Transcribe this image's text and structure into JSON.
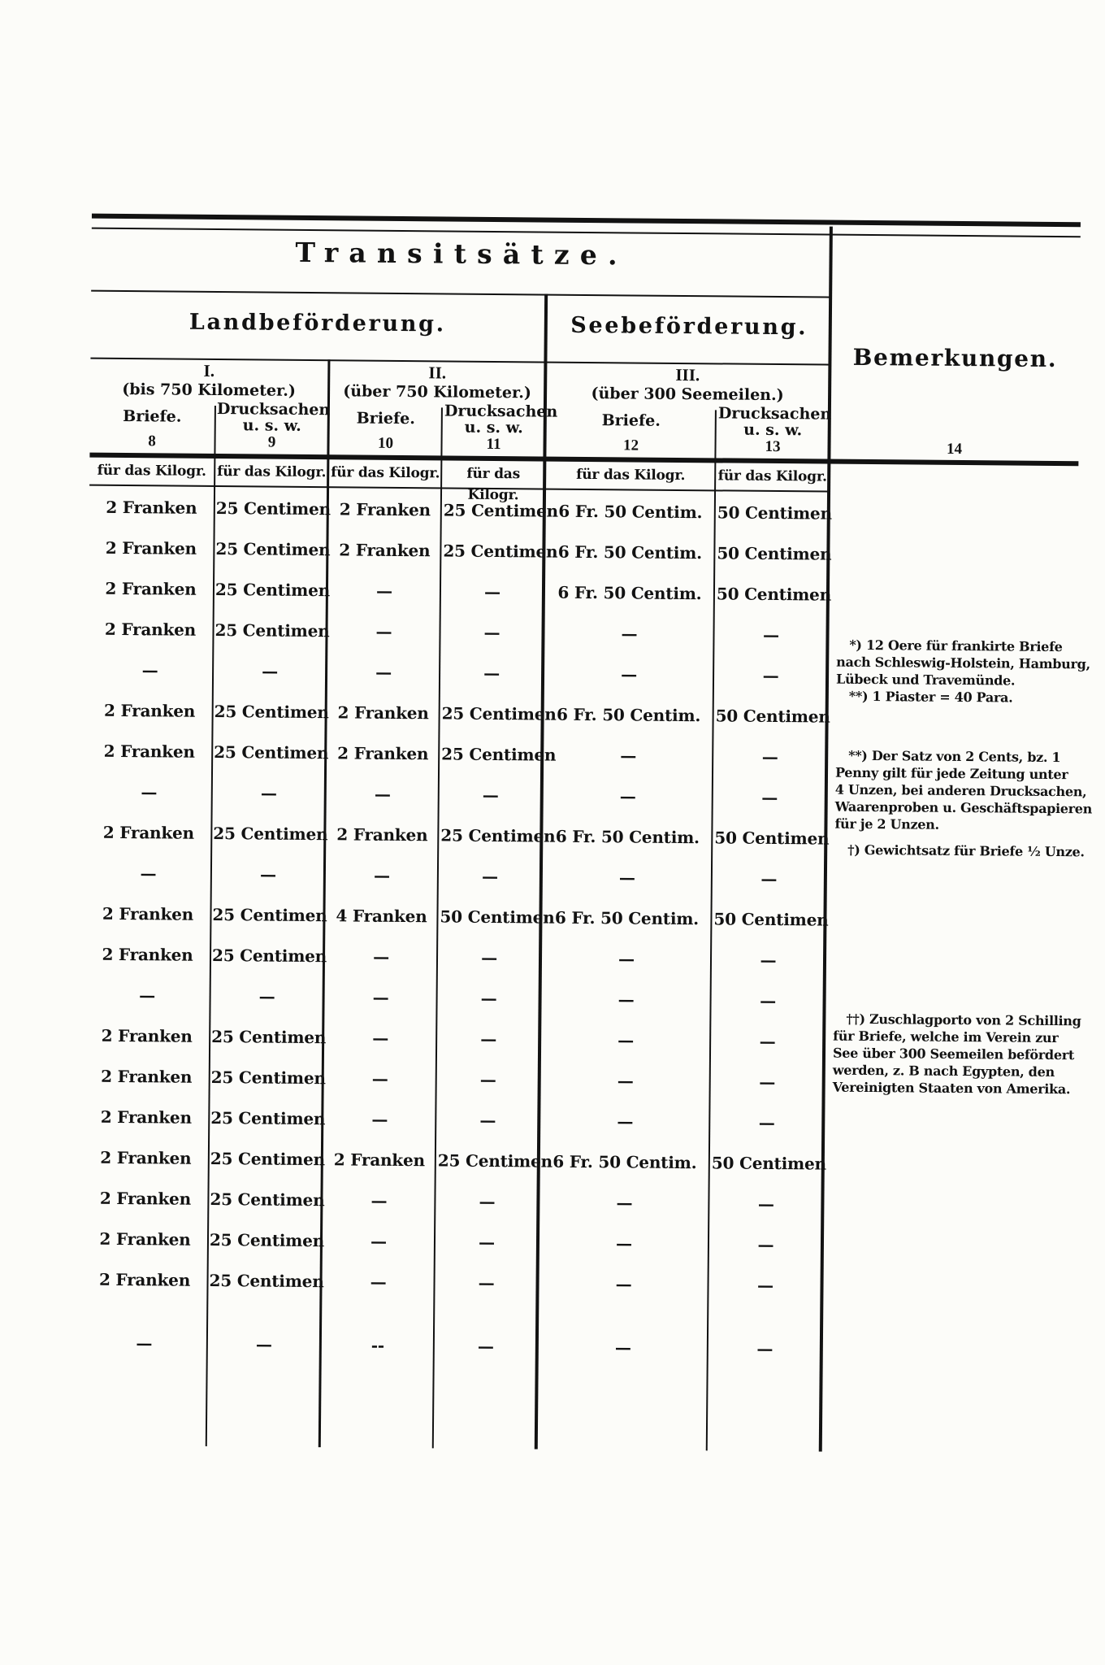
{
  "table": {
    "title": "Transitsätze.",
    "groups": [
      {
        "label": "Landbeförderung."
      },
      {
        "label": "Seebeförderung."
      }
    ],
    "remarks_header": {
      "label": "Bemerkungen.",
      "number": "14"
    },
    "sections": [
      {
        "numeral": "I.",
        "range": "(bis 750 Kilometer.)"
      },
      {
        "numeral": "II.",
        "range": "(über 750 Kilometer.)"
      },
      {
        "numeral": "III.",
        "range": "(über 300 Seemeilen.)"
      }
    ],
    "columns": [
      {
        "label": "Briefe.",
        "label2": "",
        "number": "8"
      },
      {
        "label": "Drucksachen",
        "label2": "u. s. w.",
        "number": "9"
      },
      {
        "label": "Briefe.",
        "label2": "",
        "number": "10"
      },
      {
        "label": "Drucksachen",
        "label2": "u. s. w.",
        "number": "11"
      },
      {
        "label": "Briefe.",
        "label2": "",
        "number": "12"
      },
      {
        "label": "Drucksachen",
        "label2": "u. s. w.",
        "number": "13"
      }
    ],
    "unit_label": "für das Kilogr.",
    "rows": [
      [
        "2 Franken",
        "25 Centimen",
        "2 Franken",
        "25 Centimen",
        "6 Fr. 50 Centim.",
        "50 Centimen"
      ],
      [
        "2 Franken",
        "25 Centimen",
        "2 Franken",
        "25 Centimen",
        "6 Fr. 50 Centim.",
        "50 Centimen"
      ],
      [
        "2 Franken",
        "25 Centimen",
        "—",
        "—",
        "6 Fr. 50 Centim.",
        "50 Centimen"
      ],
      [
        "2 Franken",
        "25 Centimen",
        "—",
        "—",
        "—",
        "—"
      ],
      [
        "—",
        "—",
        "—",
        "—",
        "—",
        "—"
      ],
      [
        "2 Franken",
        "25 Centimen",
        "2 Franken",
        "25 Centimen",
        "6 Fr. 50 Centim.",
        "50 Centimen"
      ],
      [
        "2 Franken",
        "25 Centimen",
        "2 Franken",
        "25 Centimen",
        "—",
        "—"
      ],
      [
        "—",
        "—",
        "—",
        "—",
        "—",
        "—"
      ],
      [
        "2 Franken",
        "25 Centimen",
        "2 Franken",
        "25 Centimen",
        "6 Fr. 50 Centim.",
        "50 Centimen"
      ],
      [
        "—",
        "—",
        "—",
        "—",
        "—",
        "—"
      ],
      [
        "2 Franken",
        "25 Centimen",
        "4 Franken",
        "50 Centimen",
        "6 Fr. 50 Centim.",
        "50 Centimen"
      ],
      [
        "2 Franken",
        "25 Centimen",
        "—",
        "—",
        "—",
        "—"
      ],
      [
        "—",
        "—",
        "—",
        "—",
        "—",
        "—"
      ],
      [
        "2 Franken",
        "25 Centimen",
        "—",
        "—",
        "—",
        "—"
      ],
      [
        "2 Franken",
        "25 Centimen",
        "—",
        "—",
        "—",
        "—"
      ],
      [
        "2 Franken",
        "25 Centimen",
        "—",
        "—",
        "—",
        "—"
      ],
      [
        "2 Franken",
        "25 Centimen",
        "2 Franken",
        "25 Centimen",
        "6 Fr. 50 Centim.",
        "50 Centimen"
      ],
      [
        "2 Franken",
        "25 Centimen",
        "—",
        "—",
        "—",
        "—"
      ],
      [
        "2 Franken",
        "25 Centimen",
        "—",
        "—",
        "—",
        "—"
      ],
      [
        "2 Franken",
        "25 Centimen",
        "—",
        "—",
        "—",
        "—"
      ],
      [
        "—",
        "—",
        "--",
        "—",
        "—",
        "—"
      ]
    ],
    "remarks": [
      {
        "lines": [
          "*) 12 Oere für frankirte Briefe",
          "nach Schleswig-Holstein, Hamburg,",
          "Lübeck und Travemünde.",
          "**) 1 Piaster = 40 Para."
        ]
      },
      {
        "lines": [
          "**) Der Satz von 2 Cents, bz. 1",
          "Penny gilt für jede Zeitung unter",
          "4 Unzen, bei anderen Drucksachen,",
          "Waarenproben u. Geschäftspapieren",
          "für je 2 Unzen."
        ]
      },
      {
        "lines": [
          "†) Gewichtsatz für Briefe ½ Unze."
        ]
      },
      {
        "lines": [
          "††) Zuschlagporto von 2 Schilling",
          "für Briefe, welche im Verein zur",
          "See über 300 Seemeilen befördert",
          "werden, z. B nach Egypten, den",
          "Vereinigten Staaten von Amerika."
        ]
      }
    ]
  }
}
